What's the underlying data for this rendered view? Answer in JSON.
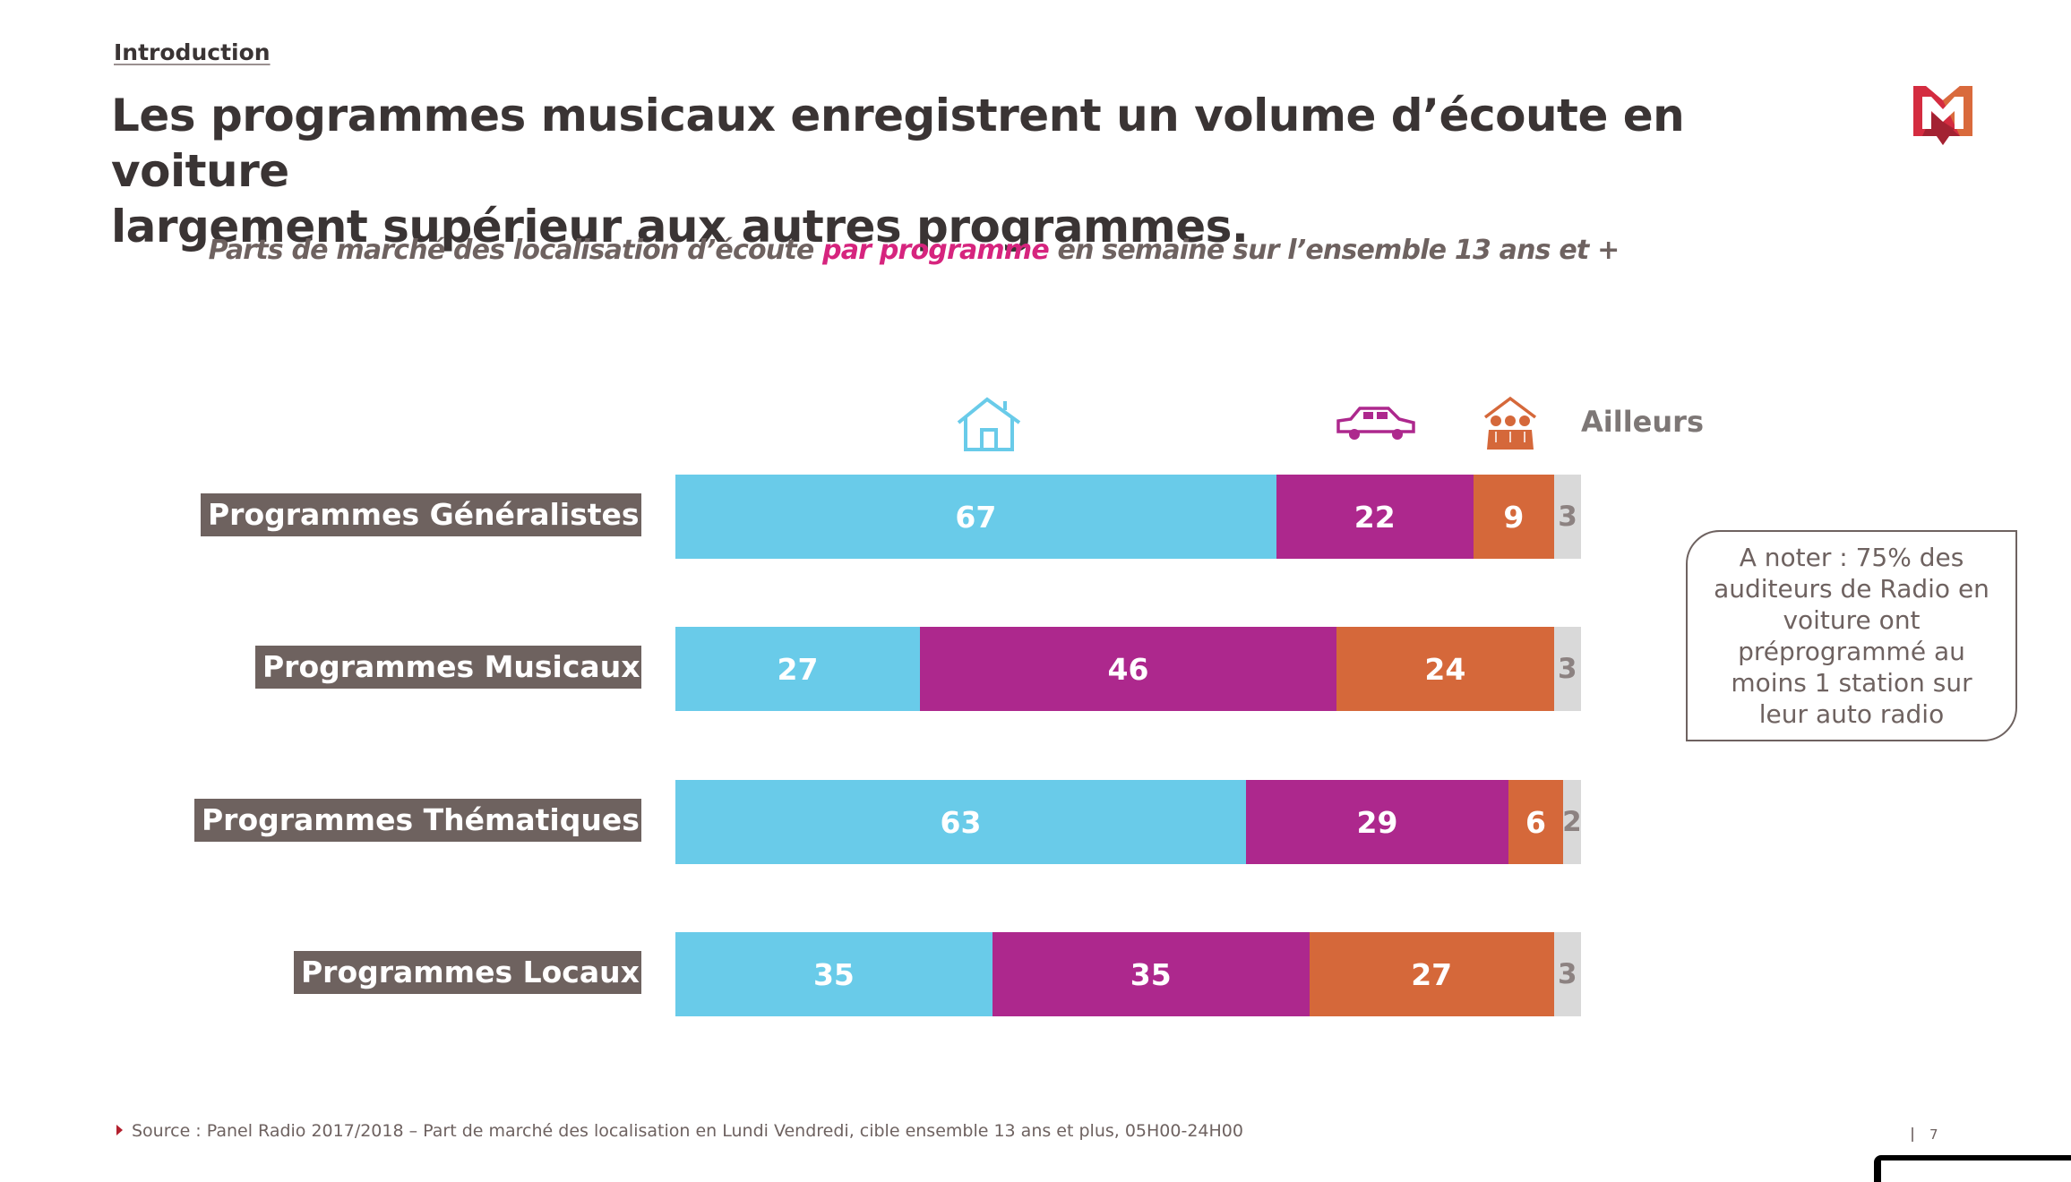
{
  "header": {
    "section": "Introduction",
    "title_line1": "Les programmes musicaux enregistrent un volume d’écoute en voiture",
    "title_line2": "largement supérieur aux autres programmes.",
    "subtitle_pre": "Parts de marché des localisation d’écoute ",
    "subtitle_highlight": "par programme",
    "subtitle_post": " en semaine sur l’ensemble 13 ans et +"
  },
  "logo": {
    "name": "m-logo-icon",
    "colors": [
      "#d42c40",
      "#a32232",
      "#d96a3c"
    ]
  },
  "legend": [
    {
      "key": "domicile",
      "icon": "house-icon",
      "color": "#69cbe9"
    },
    {
      "key": "voiture",
      "icon": "car-icon",
      "color": "#ad288d"
    },
    {
      "key": "travail",
      "icon": "group-people-icon",
      "color": "#d5683a"
    },
    {
      "key": "ailleurs",
      "label": "Ailleurs",
      "color": "#d9d9d9"
    }
  ],
  "chart_data": {
    "type": "bar",
    "orientation": "horizontal",
    "stacked": true,
    "normalized": true,
    "title": "Parts de marché des localisation d’écoute par programme en semaine sur l’ensemble 13 ans et +",
    "xlabel": "",
    "ylabel": "",
    "xlim": [
      0,
      100
    ],
    "grid": false,
    "legend_position": "top",
    "categories": [
      "Programmes Généralistes",
      "Programmes Musicaux",
      "Programmes Thématiques",
      "Programmes Locaux"
    ],
    "series": [
      {
        "name": "Domicile",
        "icon": "house-icon",
        "color": "#69cbe9",
        "values": [
          67,
          27,
          63,
          35
        ]
      },
      {
        "name": "Voiture",
        "icon": "car-icon",
        "color": "#ad288d",
        "values": [
          22,
          46,
          29,
          35
        ]
      },
      {
        "name": "Lieu de travail",
        "icon": "group-people-icon",
        "color": "#d5683a",
        "values": [
          9,
          24,
          6,
          27
        ]
      },
      {
        "name": "Ailleurs",
        "color": "#d9d9d9",
        "values": [
          3,
          3,
          2,
          3
        ]
      }
    ]
  },
  "note": {
    "text": "A noter : 75% des auditeurs de Radio en voiture ont préprogrammé au moins 1 station sur leur auto radio"
  },
  "footer": {
    "source": "Source : Panel Radio 2017/2018 – Part de marché des localisation en Lundi Vendredi, cible ensemble 13 ans et plus, 05H00-24H00",
    "page_number": "7"
  }
}
